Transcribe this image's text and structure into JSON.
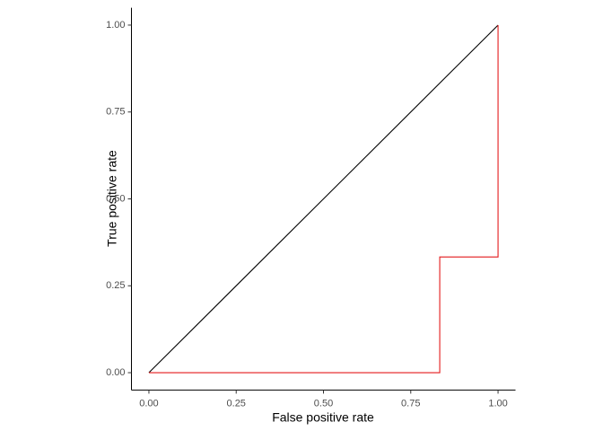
{
  "chart_data": {
    "type": "line",
    "x_label": "False positive rate",
    "y_label": "True positive rate",
    "xlim": [
      -0.05,
      1.05
    ],
    "ylim": [
      -0.05,
      1.05
    ],
    "xticks": [
      {
        "value": 0,
        "label": "0.00"
      },
      {
        "value": 0.25,
        "label": "0.25"
      },
      {
        "value": 0.5,
        "label": "0.50"
      },
      {
        "value": 0.75,
        "label": "0.75"
      },
      {
        "value": 1,
        "label": "1.00"
      }
    ],
    "yticks": [
      {
        "value": 0,
        "label": "0.00"
      },
      {
        "value": 0.25,
        "label": "0.25"
      },
      {
        "value": 0.5,
        "label": "0.50"
      },
      {
        "value": 0.75,
        "label": "0.75"
      },
      {
        "value": 1,
        "label": "1.00"
      }
    ],
    "grid": false,
    "series": [
      {
        "color": "#000000",
        "x": [
          0,
          1
        ],
        "values": [
          0,
          1
        ]
      },
      {
        "color": "#e41a1c",
        "x": [
          0,
          0.833,
          0.833,
          1,
          1
        ],
        "values": [
          0,
          0,
          0.333,
          0.333,
          1
        ]
      }
    ]
  }
}
